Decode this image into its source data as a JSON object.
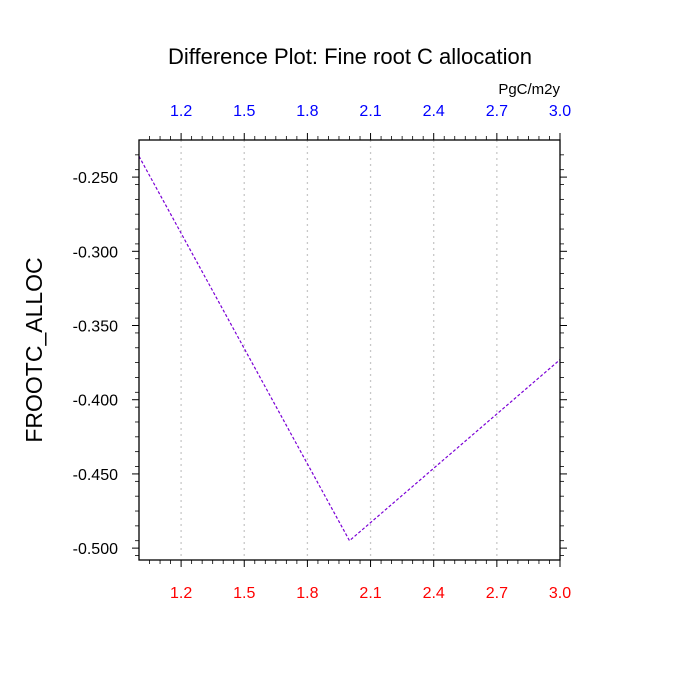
{
  "chart_data": {
    "type": "line",
    "title": "Difference Plot: Fine root C allocation",
    "units_label": "PgC/m2y",
    "ylabel": "FROOTC_ALLOC",
    "xlabel": "",
    "xlim": [
      1.0,
      3.0
    ],
    "ylim": [
      -0.508,
      -0.225
    ],
    "x_ticks": [
      "1.2",
      "1.5",
      "1.8",
      "2.1",
      "2.4",
      "2.7",
      "3.0"
    ],
    "x_tick_values": [
      1.2,
      1.5,
      1.8,
      2.1,
      2.4,
      2.7,
      3.0
    ],
    "y_ticks": [
      "-0.250",
      "-0.300",
      "-0.350",
      "-0.400",
      "-0.450",
      "-0.500"
    ],
    "y_tick_values": [
      -0.25,
      -0.3,
      -0.35,
      -0.4,
      -0.45,
      -0.5
    ],
    "grid": "vertical dotted at x ticks",
    "bottom_tick_color": "#ff0000",
    "top_tick_color": "#0000ff",
    "series": [
      {
        "color": "#7b00d6",
        "style": "dashed",
        "x": [
          1.0,
          2.0,
          3.0
        ],
        "y": [
          -0.236,
          -0.495,
          -0.373
        ]
      }
    ]
  }
}
